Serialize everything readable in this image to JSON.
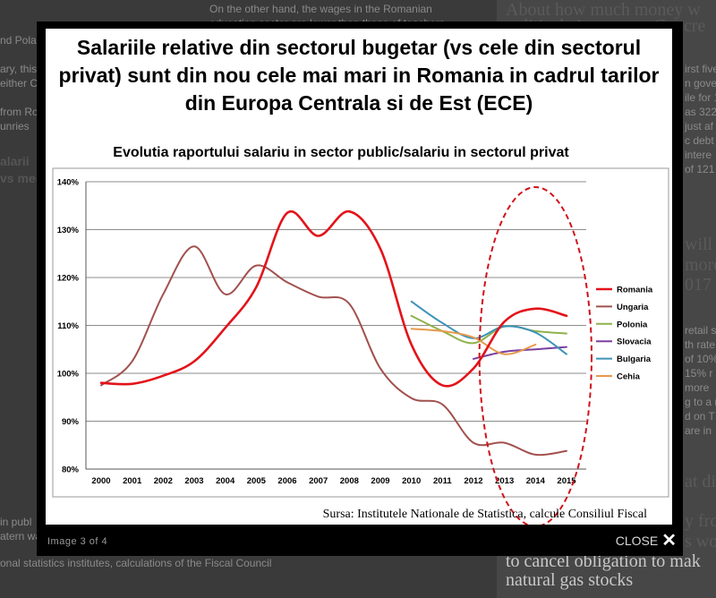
{
  "background": {
    "left_snippets": [
      "On the other hand, the wages in the Romanian",
      "education sector are lower than those of teachers",
      "nd Polan",
      "ary, this",
      "either CE",
      "from Ro",
      "unries",
      "alarii",
      "vs mec",
      "in publ",
      "atern wa",
      "onal statistics institutes, calculations of the Fiscal Council"
    ],
    "right_headlines": [
      "About how much money w",
      "political circus cost. Concre",
      "will",
      "more",
      "017",
      "at dis",
      "y fro",
      "s wo",
      "to cancel obligation to mak",
      "natural gas stocks"
    ],
    "right_snippets": [
      "irst five",
      "n gove",
      "ile for 1",
      "as 322",
      "just af",
      "c debt",
      "intere",
      "of 121",
      "retail s",
      "th rate",
      "of 10%",
      "15% r",
      "more",
      "g to a r",
      "d on T",
      "are in"
    ]
  },
  "slide": {
    "title": "Salariile relative din sectorul bugetar (vs cele din sectorul privat) sunt din nou cele mai mari in Romania in cadrul tarilor din Europa Centrala si de Est (ECE)",
    "source": "Sursa: Institutele Nationale de Statistica, calcule Consiliul Fiscal"
  },
  "lightbox": {
    "counter": "Image 3 of 4",
    "close_label": "CLOSE"
  },
  "chart_data": {
    "type": "line",
    "title": "Evolutia raportului salariu in sector public/salariu in sectorul privat",
    "categories": [
      "2000",
      "2001",
      "2002",
      "2003",
      "2004",
      "2005",
      "2006",
      "2007",
      "2008",
      "2009",
      "2010",
      "2011",
      "2012",
      "2013",
      "2014",
      "2015"
    ],
    "ylim": [
      80,
      140
    ],
    "yticks": [
      80,
      90,
      100,
      110,
      120,
      130,
      140
    ],
    "ytick_labels": [
      "80%",
      "90%",
      "100%",
      "110%",
      "120%",
      "130%",
      "140%"
    ],
    "grid": true,
    "legend": "right",
    "series": [
      {
        "name": "Romania",
        "color": "#e3131a",
        "width": 2.6,
        "x": [
          2000,
          2001,
          2002,
          2003,
          2004,
          2005,
          2006,
          2007,
          2008,
          2009,
          2010,
          2011,
          2012,
          2013,
          2014,
          2015
        ],
        "values": [
          98,
          97.8,
          99.5,
          102.5,
          109.5,
          118,
          133.5,
          128.7,
          133.8,
          126,
          106,
          97.5,
          101,
          110.8,
          113.5,
          112
        ]
      },
      {
        "name": "Ungaria",
        "color": "#a2504e",
        "width": 2.0,
        "x": [
          2000,
          2001,
          2002,
          2003,
          2004,
          2005,
          2006,
          2007,
          2008,
          2009,
          2010,
          2011,
          2012,
          2013,
          2014,
          2015
        ],
        "values": [
          97.5,
          102.5,
          116.5,
          126.5,
          116.5,
          122.5,
          119,
          116,
          114.5,
          101,
          94.8,
          93.5,
          85.5,
          85.5,
          83,
          83.8
        ]
      },
      {
        "name": "Polonia",
        "color": "#8fb24b",
        "width": 2.0,
        "x": [
          2010,
          2011,
          2012,
          2013,
          2014,
          2015
        ],
        "values": [
          112,
          108.8,
          106.3,
          109.8,
          108.8,
          108.3
        ]
      },
      {
        "name": "Slovacia",
        "color": "#7a3fa1",
        "width": 2.0,
        "x": [
          2012,
          2013,
          2014,
          2015
        ],
        "values": [
          103,
          104.5,
          105,
          105.5
        ]
      },
      {
        "name": "Bulgaria",
        "color": "#3c93b8",
        "width": 2.0,
        "x": [
          2010,
          2011,
          2012,
          2013,
          2014,
          2015
        ],
        "values": [
          115,
          110.5,
          107.3,
          109.8,
          108.5,
          104
        ]
      },
      {
        "name": "Cehia",
        "color": "#e79a4c",
        "width": 2.0,
        "x": [
          2010,
          2011,
          2012,
          2013,
          2014
        ],
        "values": [
          109.3,
          108.8,
          107.5,
          104,
          106
        ]
      }
    ],
    "highlight": {
      "shape": "dashed-ellipse",
      "color": "#d0121b",
      "around": [
        "2013",
        "2014",
        "2015"
      ]
    }
  }
}
